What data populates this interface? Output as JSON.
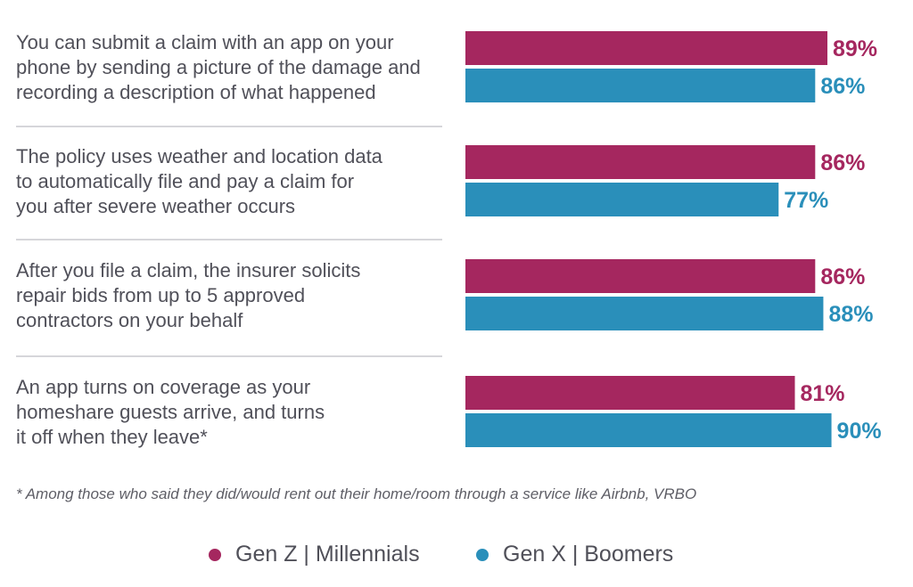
{
  "colors": {
    "series1": "#a5275f",
    "series2": "#2a8fba",
    "divider": "#c9c9ce"
  },
  "chart_data": {
    "type": "bar",
    "orientation": "horizontal",
    "categories": [
      [
        "You can submit a claim with an app on your",
        "phone by sending a picture of the damage and",
        "recording a description of what happened"
      ],
      [
        "The policy uses weather and location data",
        "to automatically file and pay a claim for",
        "you after severe weather occurs"
      ],
      [
        "After you file a claim, the insurer solicits",
        "repair bids from up to 5 approved",
        "contractors on your behalf"
      ],
      [
        "An app turns on coverage as your",
        "homeshare guests arrive, and turns",
        "it off when they leave*"
      ]
    ],
    "series": [
      {
        "name": "Gen Z | Millennials",
        "values": [
          89,
          86,
          86,
          81
        ],
        "labels": [
          "89%",
          "86%",
          "86%",
          "81%"
        ]
      },
      {
        "name": "Gen X | Boomers",
        "values": [
          86,
          77,
          88,
          90
        ],
        "labels": [
          "86%",
          "77%",
          "88%",
          "90%"
        ]
      }
    ],
    "xlim": [
      0,
      100
    ],
    "legend_position": "bottom-center",
    "grid": false
  },
  "footnote": "* Among those who said they did/would rent out their home/room through a service like Airbnb, VRBO"
}
